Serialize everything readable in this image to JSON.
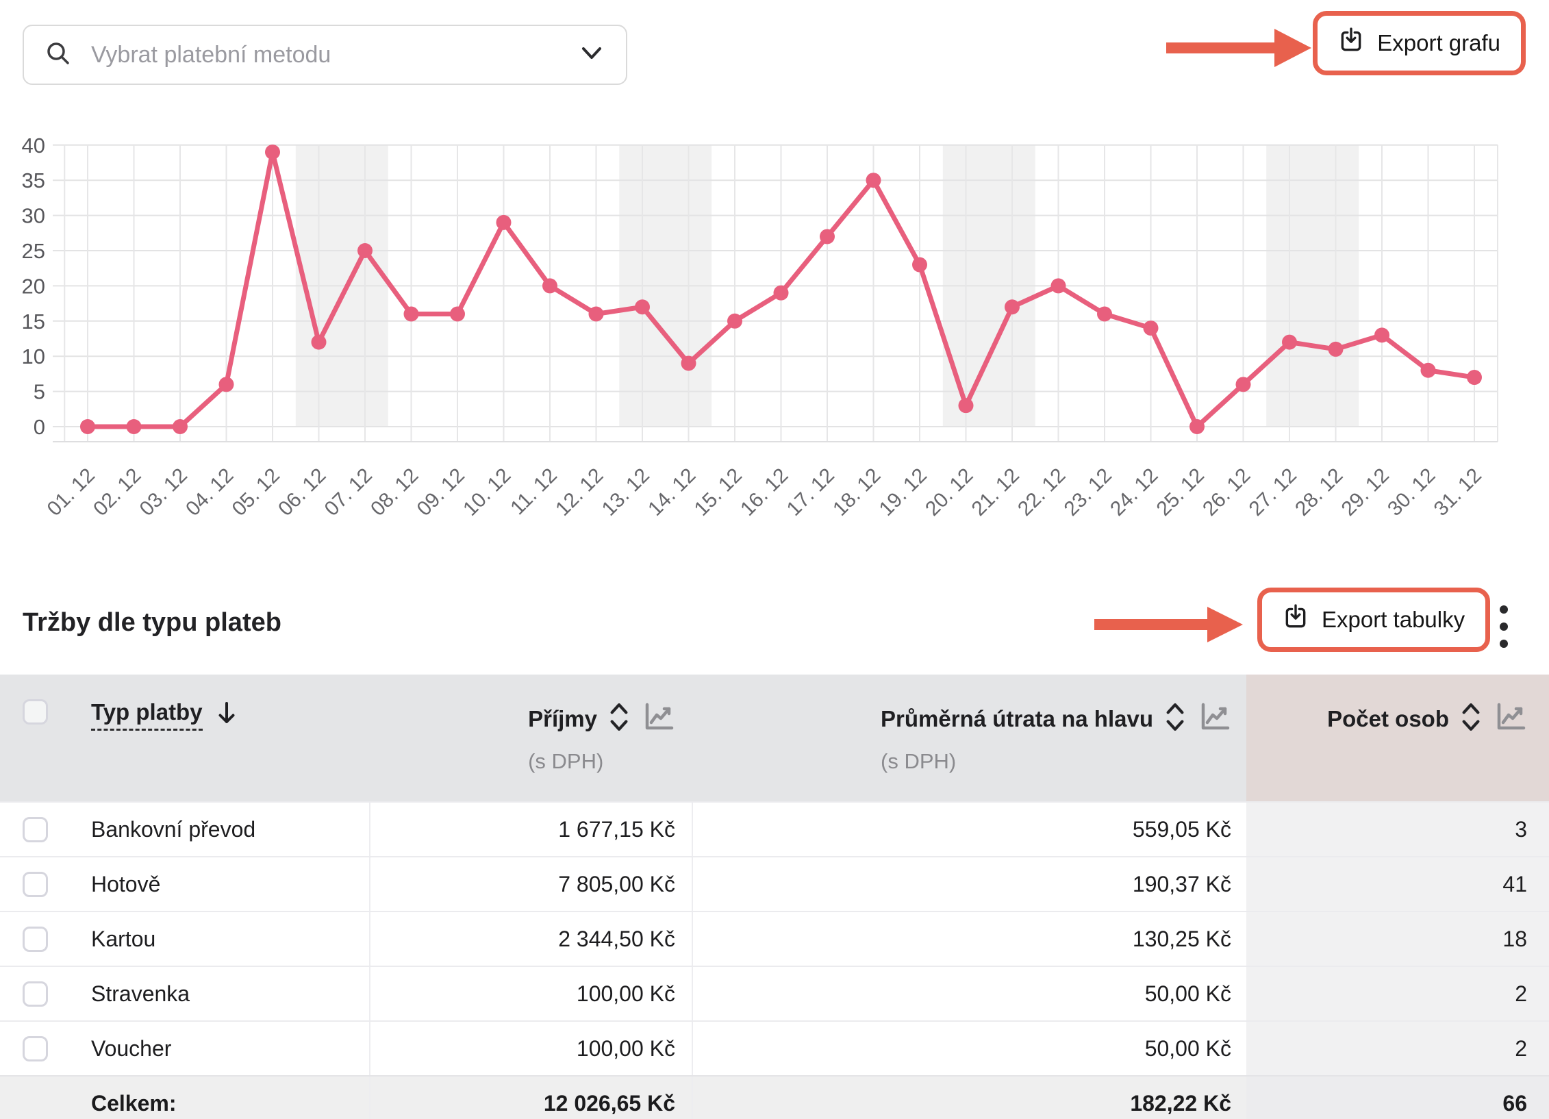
{
  "filter": {
    "placeholder": "Vybrat platební metodu"
  },
  "actions": {
    "export_chart": "Export grafu",
    "export_table": "Export tabulky"
  },
  "colors": {
    "accent": "#e8614d",
    "line": "#e85f7d",
    "weekend_band": "#f1f1f1",
    "header_bg": "#e4e5e7",
    "header_highlight_bg": "#e2d8d6",
    "column_highlight_bg": "#f1f1f2",
    "total_row_bg": "#efefef"
  },
  "chart_data": {
    "type": "line",
    "title": "",
    "xlabel": "",
    "ylabel": "",
    "categories": [
      "01. 12",
      "02. 12",
      "03. 12",
      "04. 12",
      "05. 12",
      "06. 12",
      "07. 12",
      "08. 12",
      "09. 12",
      "10. 12",
      "11. 12",
      "12. 12",
      "13. 12",
      "14. 12",
      "15. 12",
      "16. 12",
      "17. 12",
      "18. 12",
      "19. 12",
      "20. 12",
      "21. 12",
      "22. 12",
      "23. 12",
      "24. 12",
      "25. 12",
      "26. 12",
      "27. 12",
      "28. 12",
      "29. 12",
      "30. 12",
      "31. 12"
    ],
    "values": [
      0,
      0,
      0,
      6,
      39,
      12,
      25,
      16,
      16,
      29,
      20,
      16,
      17,
      9,
      15,
      19,
      27,
      35,
      23,
      3,
      17,
      20,
      16,
      14,
      0,
      6,
      12,
      11,
      13,
      8,
      7
    ],
    "ylim": [
      0,
      40
    ],
    "ytick_step": 5,
    "grid": true,
    "legend": false,
    "weekend_bands": [
      [
        6,
        7
      ],
      [
        13,
        14
      ],
      [
        20,
        21
      ],
      [
        27,
        28
      ]
    ]
  },
  "table": {
    "title": "Tržby dle typu plateb",
    "columns": [
      {
        "label": "Typ platby",
        "sort": "desc"
      },
      {
        "label": "Příjmy",
        "sub": "(s DPH)"
      },
      {
        "label": "Průměrná útrata na hlavu",
        "sub": "(s DPH)"
      },
      {
        "label": "Počet osob"
      }
    ],
    "rows": [
      {
        "type": "Bankovní převod",
        "income": "1 677,15 Kč",
        "avg": "559,05 Kč",
        "count": "3"
      },
      {
        "type": "Hotově",
        "income": "7 805,00 Kč",
        "avg": "190,37 Kč",
        "count": "41"
      },
      {
        "type": "Kartou",
        "income": "2 344,50 Kč",
        "avg": "130,25 Kč",
        "count": "18"
      },
      {
        "type": "Stravenka",
        "income": "100,00 Kč",
        "avg": "50,00 Kč",
        "count": "2"
      },
      {
        "type": "Voucher",
        "income": "100,00 Kč",
        "avg": "50,00 Kč",
        "count": "2"
      }
    ],
    "total": {
      "label": "Celkem:",
      "income": "12 026,65 Kč",
      "avg": "182,22 Kč",
      "count": "66"
    }
  }
}
